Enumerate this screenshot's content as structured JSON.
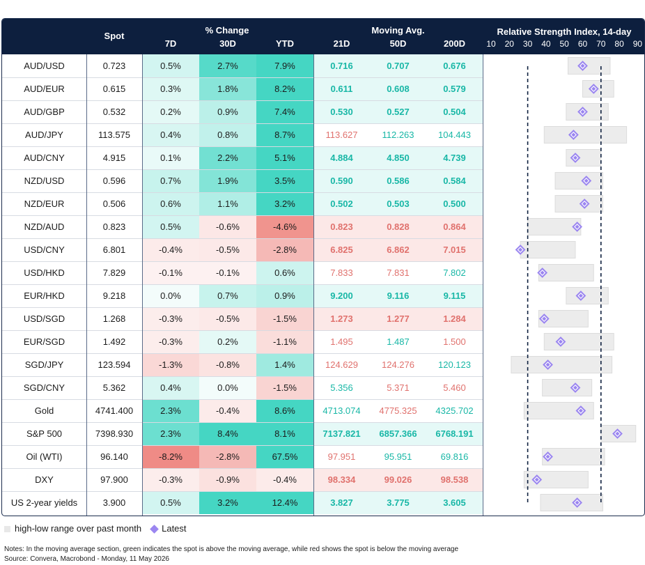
{
  "header": {
    "spot": "Spot",
    "pct_change": "% Change",
    "d7": "7D",
    "d30": "30D",
    "ytd": "YTD",
    "moving_avg": "Moving Avg.",
    "d21": "21D",
    "d50": "50D",
    "d200": "200D",
    "rsi_title": "Relative Strength Index, 14-day",
    "rsi_ticks": [
      "10",
      "20",
      "30",
      "40",
      "50",
      "60",
      "70",
      "80",
      "90"
    ]
  },
  "colors": {
    "header_bg": "#0d1f3e",
    "ma_above": "#18b7a6",
    "ma_below": "#e0716d",
    "diamond": "#9b86f0",
    "range_bar": "#e8e8e8"
  },
  "chart_data": {
    "type": "table",
    "rsi_axis": {
      "xlim": [
        10,
        90
      ],
      "reference_lines": [
        30,
        70
      ]
    },
    "rows": [
      {
        "name": "AUD/USD",
        "spot": "0.723",
        "d7": "0.5%",
        "d30": "2.7%",
        "ytd": "7.9%",
        "ma21": "0.716",
        "ma50": "0.707",
        "ma200": "0.676",
        "rsi": 60,
        "rsi_low": 52,
        "rsi_high": 75
      },
      {
        "name": "AUD/EUR",
        "spot": "0.615",
        "d7": "0.3%",
        "d30": "1.8%",
        "ytd": "8.2%",
        "ma21": "0.611",
        "ma50": "0.608",
        "ma200": "0.579",
        "rsi": 66,
        "rsi_low": 60,
        "rsi_high": 77
      },
      {
        "name": "AUD/GBP",
        "spot": "0.532",
        "d7": "0.2%",
        "d30": "0.9%",
        "ytd": "7.4%",
        "ma21": "0.530",
        "ma50": "0.527",
        "ma200": "0.504",
        "rsi": 60,
        "rsi_low": 51,
        "rsi_high": 74
      },
      {
        "name": "AUD/JPY",
        "spot": "113.575",
        "d7": "0.4%",
        "d30": "0.8%",
        "ytd": "8.7%",
        "ma21": "113.627",
        "ma50": "112.263",
        "ma200": "104.443",
        "rsi": 55,
        "rsi_low": 39,
        "rsi_high": 84
      },
      {
        "name": "AUD/CNY",
        "spot": "4.915",
        "d7": "0.1%",
        "d30": "2.2%",
        "ytd": "5.1%",
        "ma21": "4.884",
        "ma50": "4.850",
        "ma200": "4.739",
        "rsi": 56,
        "rsi_low": 51,
        "rsi_high": 70
      },
      {
        "name": "NZD/USD",
        "spot": "0.596",
        "d7": "0.7%",
        "d30": "1.9%",
        "ytd": "3.5%",
        "ma21": "0.590",
        "ma50": "0.586",
        "ma200": "0.584",
        "rsi": 62,
        "rsi_low": 45,
        "rsi_high": 71
      },
      {
        "name": "NZD/EUR",
        "spot": "0.506",
        "d7": "0.6%",
        "d30": "1.1%",
        "ytd": "3.2%",
        "ma21": "0.502",
        "ma50": "0.503",
        "ma200": "0.500",
        "rsi": 61,
        "rsi_low": 45,
        "rsi_high": 71
      },
      {
        "name": "NZD/AUD",
        "spot": "0.823",
        "d7": "0.5%",
        "d30": "-0.6%",
        "ytd": "-4.6%",
        "ma21": "0.823",
        "ma50": "0.828",
        "ma200": "0.864",
        "rsi": 57,
        "rsi_low": 30,
        "rsi_high": 59
      },
      {
        "name": "USD/CNY",
        "spot": "6.801",
        "d7": "-0.4%",
        "d30": "-0.5%",
        "ytd": "-2.8%",
        "ma21": "6.825",
        "ma50": "6.862",
        "ma200": "7.015",
        "rsi": 26,
        "rsi_low": 26,
        "rsi_high": 56
      },
      {
        "name": "USD/HKD",
        "spot": "7.829",
        "d7": "-0.1%",
        "d30": "-0.1%",
        "ytd": "0.6%",
        "ma21": "7.833",
        "ma50": "7.831",
        "ma200": "7.802",
        "rsi": 38,
        "rsi_low": 36,
        "rsi_high": 66
      },
      {
        "name": "EUR/HKD",
        "spot": "9.218",
        "d7": "0.0%",
        "d30": "0.7%",
        "ytd": "0.9%",
        "ma21": "9.200",
        "ma50": "9.116",
        "ma200": "9.115",
        "rsi": 59,
        "rsi_low": 51,
        "rsi_high": 74
      },
      {
        "name": "USD/SGD",
        "spot": "1.268",
        "d7": "-0.3%",
        "d30": "-0.5%",
        "ytd": "-1.5%",
        "ma21": "1.273",
        "ma50": "1.277",
        "ma200": "1.284",
        "rsi": 39,
        "rsi_low": 36,
        "rsi_high": 63
      },
      {
        "name": "EUR/SGD",
        "spot": "1.492",
        "d7": "-0.3%",
        "d30": "0.2%",
        "ytd": "-1.1%",
        "ma21": "1.495",
        "ma50": "1.487",
        "ma200": "1.500",
        "rsi": 48,
        "rsi_low": 39,
        "rsi_high": 77
      },
      {
        "name": "SGD/JPY",
        "spot": "123.594",
        "d7": "-1.3%",
        "d30": "-0.8%",
        "ytd": "1.4%",
        "ma21": "124.629",
        "ma50": "124.276",
        "ma200": "120.123",
        "rsi": 41,
        "rsi_low": 21,
        "rsi_high": 76
      },
      {
        "name": "SGD/CNY",
        "spot": "5.362",
        "d7": "0.4%",
        "d30": "0.0%",
        "ytd": "-1.5%",
        "ma21": "5.356",
        "ma50": "5.371",
        "ma200": "5.460",
        "rsi": 56,
        "rsi_low": 38,
        "rsi_high": 65
      },
      {
        "name": "Gold",
        "spot": "4741.400",
        "d7": "2.3%",
        "d30": "-0.4%",
        "ytd": "8.6%",
        "ma21": "4713.074",
        "ma50": "4775.325",
        "ma200": "4325.702",
        "rsi": 59,
        "rsi_low": 28,
        "rsi_high": 66
      },
      {
        "name": "S&P 500",
        "spot": "7398.930",
        "d7": "2.3%",
        "d30": "8.4%",
        "ytd": "8.1%",
        "ma21": "7137.821",
        "ma50": "6857.366",
        "ma200": "6768.191",
        "rsi": 79,
        "rsi_low": 70,
        "rsi_high": 89
      },
      {
        "name": "Oil (WTI)",
        "spot": "96.140",
        "d7": "-8.2%",
        "d30": "-2.8%",
        "ytd": "67.5%",
        "ma21": "97.951",
        "ma50": "95.951",
        "ma200": "69.816",
        "rsi": 41,
        "rsi_low": 38,
        "rsi_high": 72
      },
      {
        "name": "DXY",
        "spot": "97.900",
        "d7": "-0.3%",
        "d30": "-0.9%",
        "ytd": "-0.4%",
        "ma21": "98.334",
        "ma50": "99.026",
        "ma200": "98.538",
        "rsi": 35,
        "rsi_low": 28,
        "rsi_high": 63
      },
      {
        "name": "US 2-year yields",
        "spot": "3.900",
        "d7": "0.5%",
        "d30": "3.2%",
        "ytd": "12.4%",
        "ma21": "3.827",
        "ma50": "3.775",
        "ma200": "3.605",
        "rsi": 57,
        "rsi_low": 37,
        "rsi_high": 71
      }
    ]
  },
  "legend": {
    "range": "high-low range over past month",
    "latest": "Latest"
  },
  "notes": {
    "line1": "Notes: In the moving average section, green indicates the spot is above the moving average, while red shows the spot is below the moving average",
    "line2": "Source: Convera, Macrobond - Monday, 11 May 2026"
  }
}
